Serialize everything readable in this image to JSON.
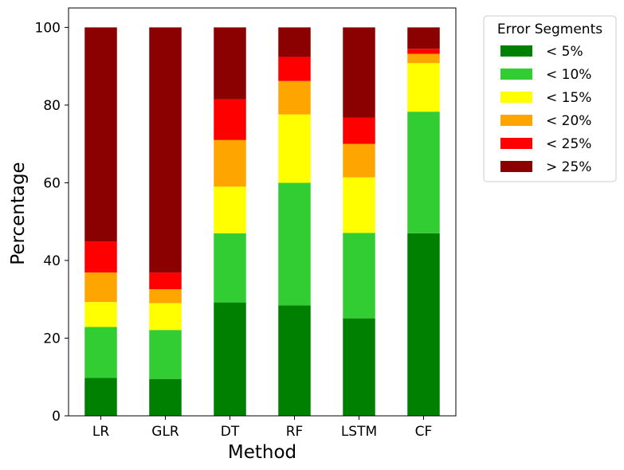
{
  "chart_data": {
    "type": "bar",
    "stacked": true,
    "categories": [
      "LR",
      "GLR",
      "DT",
      "RF",
      "LSTM",
      "CF"
    ],
    "series": [
      {
        "name": "< 5%",
        "color": "#008000",
        "values": [
          9.8,
          9.5,
          29.2,
          28.4,
          25.1,
          47.0
        ]
      },
      {
        "name": "< 10%",
        "color": "#32CD32",
        "values": [
          13.1,
          12.6,
          17.8,
          31.6,
          22.0,
          31.3
        ]
      },
      {
        "name": "< 15%",
        "color": "#FFFF00",
        "values": [
          6.4,
          6.9,
          12.0,
          17.6,
          14.3,
          12.5
        ]
      },
      {
        "name": "< 20%",
        "color": "#FFA500",
        "values": [
          7.6,
          3.6,
          12.0,
          8.6,
          8.6,
          2.4
        ]
      },
      {
        "name": "< 25%",
        "color": "#FF0000",
        "values": [
          8.0,
          4.3,
          10.5,
          6.2,
          6.8,
          1.3
        ]
      },
      {
        "name": "> 25%",
        "color": "#8B0000",
        "values": [
          55.1,
          63.1,
          18.5,
          7.6,
          23.2,
          5.5
        ]
      }
    ],
    "xlabel": "Method",
    "ylabel": "Percentage",
    "ylim": [
      0,
      105
    ],
    "yticks": [
      0,
      20,
      40,
      60,
      80,
      100
    ],
    "grid": false,
    "legend": {
      "title": "Error Segments",
      "placement": "outside-right-top"
    }
  }
}
